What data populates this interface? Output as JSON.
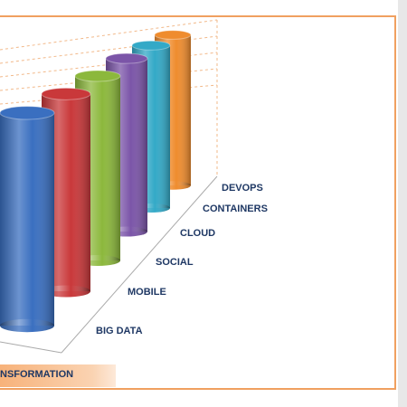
{
  "chart_data": {
    "type": "cylinder",
    "categories": [
      "BIG DATA",
      "MOBILE",
      "SOCIAL",
      "CLOUD",
      "CONTAINERS",
      "DEVOPS"
    ],
    "values": [
      98,
      101,
      102,
      104,
      107,
      104
    ],
    "colors": [
      "#3a6fc0",
      "#c9383a",
      "#8cb83c",
      "#7b55a8",
      "#33a9c7",
      "#ef8c2e"
    ],
    "caption": "NSFORMATION"
  }
}
